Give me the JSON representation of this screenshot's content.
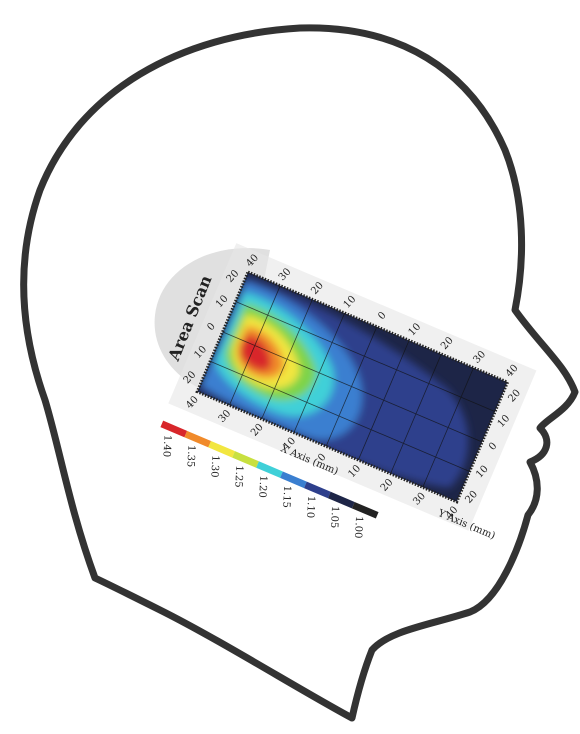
{
  "title": "Area Scan",
  "x_axis": {
    "label": "X Axis (mm)",
    "top_ticks": [
      "40",
      "30",
      "20",
      "10",
      "0",
      "10",
      "20",
      "30",
      "40"
    ],
    "bottom_ticks": [
      "40",
      "30",
      "20",
      "10",
      "0",
      "10",
      "20",
      "30",
      "40"
    ]
  },
  "y_axis": {
    "label": "Y Axis (mm)",
    "left_ticks": [
      "20",
      "10",
      "0",
      "10",
      "20"
    ],
    "right_ticks": [
      "20",
      "10",
      "0",
      "10",
      "20"
    ]
  },
  "colorbar": {
    "labels": [
      "1.40",
      "1.35",
      "1.30",
      "1.25",
      "1.20",
      "1.15",
      "1.10",
      "1.05",
      "1.00"
    ]
  }
}
